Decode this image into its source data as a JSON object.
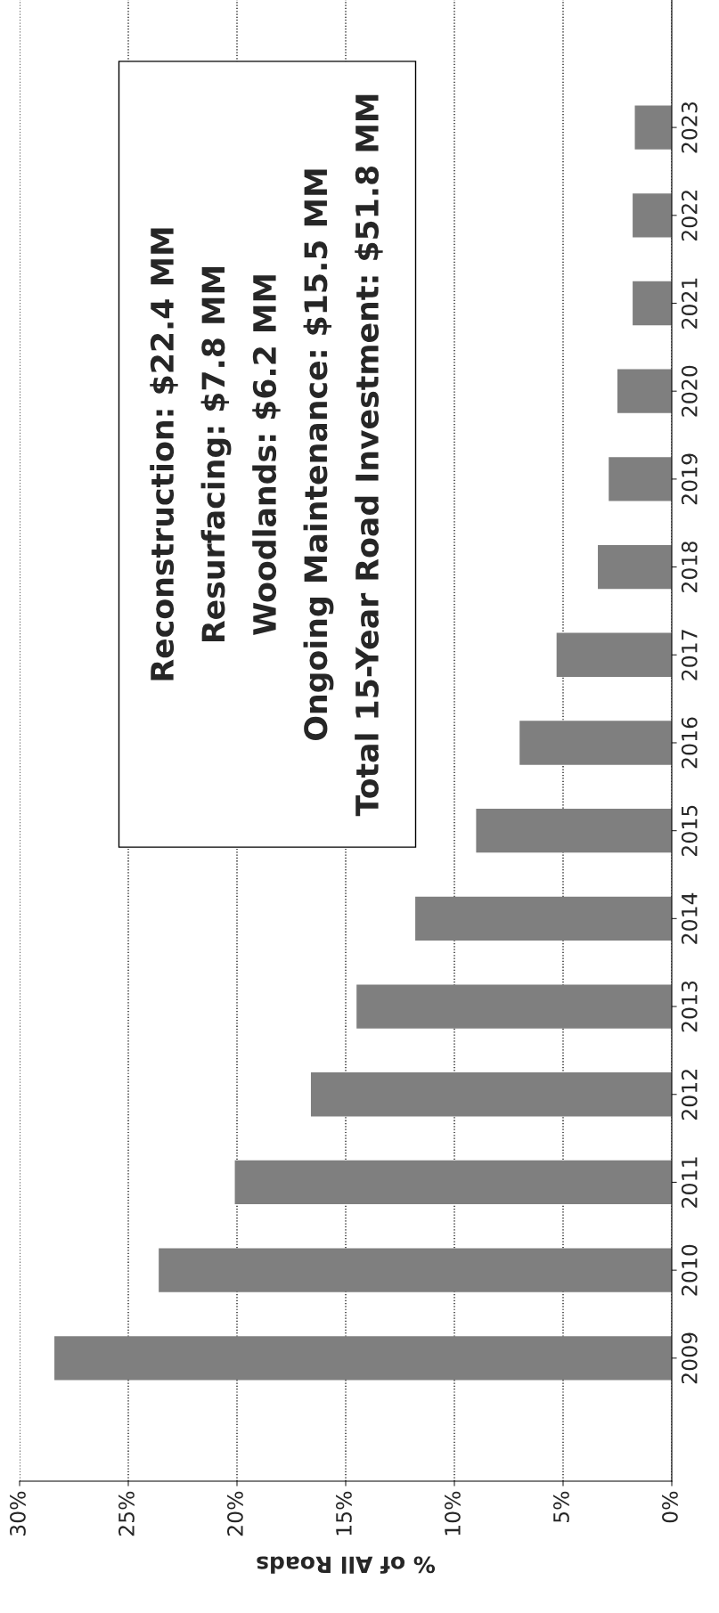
{
  "chart_data": {
    "type": "bar",
    "orientation": "horizontal",
    "categories": [
      "2023",
      "2022",
      "2021",
      "2020",
      "2019",
      "2018",
      "2017",
      "2016",
      "2015",
      "2014",
      "2013",
      "2012",
      "2011",
      "2010",
      "2009"
    ],
    "values": [
      1.7,
      1.8,
      1.8,
      2.5,
      2.9,
      3.4,
      5.3,
      7.0,
      9.0,
      11.8,
      14.5,
      16.6,
      20.1,
      23.6,
      28.4
    ],
    "color": "#7f7f7f",
    "xlabel": "% of All Roads",
    "xlim": [
      30,
      0
    ],
    "xticks": [
      {
        "value": 30,
        "label": "30%"
      },
      {
        "value": 25,
        "label": "25%"
      },
      {
        "value": 20,
        "label": "20%"
      },
      {
        "value": 15,
        "label": "15%"
      },
      {
        "value": 10,
        "label": "10%"
      },
      {
        "value": 5,
        "label": "5%"
      },
      {
        "value": 0,
        "label": "0%"
      }
    ],
    "grid": "x",
    "annotations": [
      "Reconstruction: $22.4 MM",
      "Resurfacing: $7.8 MM",
      "Woodlands: $6.2 MM",
      "Ongoing Maintenance: $15.5 MM",
      "Total 15-Year Road Investment: $51.8 MM"
    ]
  }
}
